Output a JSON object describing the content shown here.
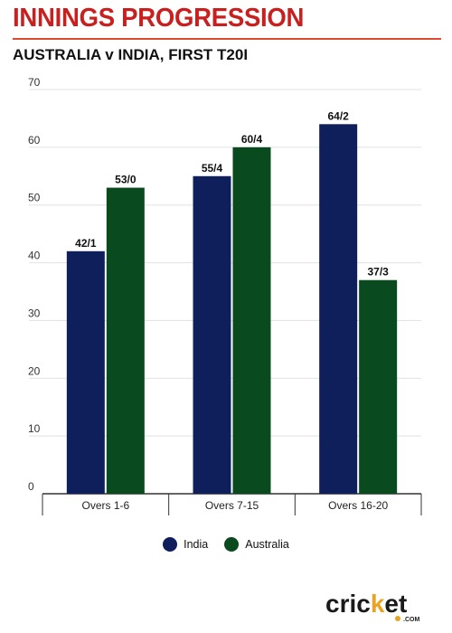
{
  "header": {
    "title": "INNINGS PROGRESSION",
    "subtitle": "AUSTRALIA v INDIA, FIRST T20I"
  },
  "colors": {
    "India": "#0f1f5c",
    "Australia": "#0a4a1f",
    "accent": "#c8201e"
  },
  "chart_data": {
    "type": "bar",
    "title": "INNINGS PROGRESSION",
    "subtitle": "AUSTRALIA v INDIA, FIRST T20I",
    "categories": [
      "Overs 1-6",
      "Overs 7-15",
      "Overs 16-20"
    ],
    "series": [
      {
        "name": "India",
        "values": [
          42,
          55,
          64
        ],
        "labels": [
          "42/1",
          "55/4",
          "64/2"
        ]
      },
      {
        "name": "Australia",
        "values": [
          53,
          60,
          37
        ],
        "labels": [
          "53/0",
          "60/4",
          "37/3"
        ]
      }
    ],
    "ylim": [
      0,
      70
    ],
    "yticks": [
      0,
      10,
      20,
      30,
      40,
      50,
      60,
      70
    ],
    "xlabel": "",
    "ylabel": "",
    "grid": true,
    "legend_position": "bottom-center"
  },
  "legend": [
    {
      "name": "India",
      "icon": "circle-swatch"
    },
    {
      "name": "Australia",
      "icon": "circle-swatch"
    }
  ],
  "logo": {
    "text": "cricket",
    "sub": ".COM"
  }
}
